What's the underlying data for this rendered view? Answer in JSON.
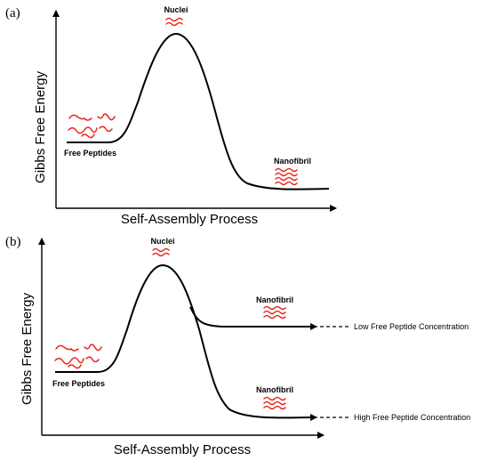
{
  "panel_a": {
    "letter": "(a)",
    "y_axis_label": "Gibbs Free Energy",
    "x_axis_label": "Self-Assembly Process",
    "nuclei_label": "Nuclei",
    "free_peptides_label": "Free Peptides",
    "nanofibril_label": "Nanofibril"
  },
  "panel_b": {
    "letter": "(b)",
    "y_axis_label": "Gibbs Free Energy",
    "x_axis_label": "Self-Assembly Process",
    "nuclei_label": "Nuclei",
    "free_peptides_label": "Free Peptides",
    "nanofibril_high_label": "Nanofibril",
    "nanofibril_low_label": "Nanofibril",
    "low_conc_label": "Low Free Peptide Concentration",
    "high_conc_label": "High Free Peptide Concentration"
  },
  "colors": {
    "wave": "#e8261c",
    "line": "#000000"
  },
  "icons": [
    "random-coil-peptides-icon",
    "nuclei-wave-icon",
    "nanofibril-wave-icon",
    "arrow-left-icon"
  ]
}
